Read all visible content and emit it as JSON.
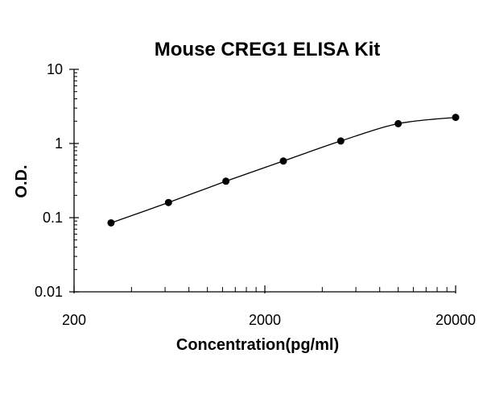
{
  "chart_data": {
    "type": "scatter",
    "title": "Mouse CREG1 ELISA Kit",
    "xlabel": "Concentration(pg/ml)",
    "ylabel": "O.D.",
    "x_scale": "log",
    "y_scale": "log",
    "xlim": [
      200,
      20000
    ],
    "ylim": [
      0.01,
      10
    ],
    "x_ticks": [
      "200",
      "2000",
      "20000"
    ],
    "y_ticks": [
      "0.01",
      "0.1",
      "1",
      "10"
    ],
    "grid": false,
    "legend": "none",
    "fit_line": "smooth curve through points",
    "marker_color": "#000000",
    "series": [
      {
        "x": [
          312.5,
          625,
          1250,
          2500,
          5000,
          10000,
          20000
        ],
        "y": [
          0.085,
          0.16,
          0.31,
          0.58,
          1.08,
          1.85,
          2.25
        ]
      }
    ]
  }
}
